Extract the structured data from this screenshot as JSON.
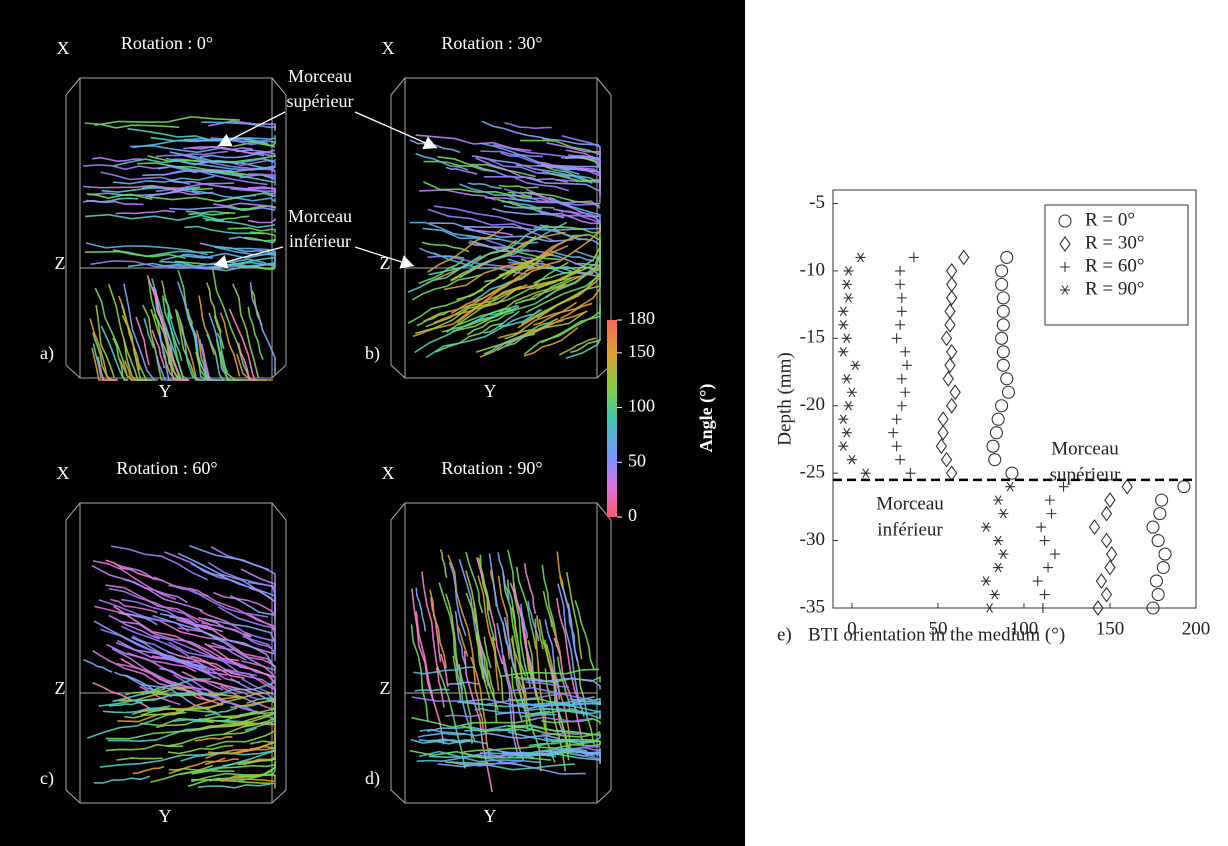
{
  "figure": {
    "panels": [
      {
        "title": "Rotation : 0°",
        "letter": "a)"
      },
      {
        "title": "Rotation : 30°",
        "letter": "b)"
      },
      {
        "title": "Rotation : 60°",
        "letter": "c)"
      },
      {
        "title": "Rotation : 90°",
        "letter": "d)"
      }
    ],
    "axis_labels": {
      "x": "X",
      "y": "Y",
      "z": "Z"
    },
    "annotations": {
      "upper": [
        "Morceau",
        "supérieur"
      ],
      "lower": [
        "Morceau",
        "inférieur"
      ]
    },
    "colorbar": {
      "label": "Angle (°)",
      "lim": [
        0,
        180
      ],
      "ticks": [
        0,
        50,
        100,
        150,
        180
      ]
    }
  },
  "chart_data": {
    "type": "scatter",
    "panel_label": "e)",
    "x_label": "BTI orientation in the medium (°)",
    "y_label": "Depth (mm)",
    "xlim": [
      -11,
      200
    ],
    "xticks": [
      0,
      50,
      100,
      150,
      200
    ],
    "ylim": [
      -35,
      -4
    ],
    "yticks": [
      -35,
      -30,
      -25,
      -20,
      -15,
      -10,
      -5
    ],
    "y": [
      -9,
      -10,
      -11,
      -12,
      -13,
      -14,
      -15,
      -16,
      -17,
      -18,
      -19,
      -20,
      -21,
      -22,
      -23,
      -24,
      -25,
      -26,
      -27,
      -28,
      -29,
      -30,
      -31,
      -32,
      -33,
      -34,
      -35
    ],
    "series": [
      {
        "name": "R = 0°",
        "marker": "circle",
        "color": "#333333",
        "x": [
          90,
          87,
          87,
          88,
          88,
          88,
          87,
          88,
          88,
          90,
          91,
          87,
          85,
          84,
          82,
          83,
          93,
          193,
          180,
          179,
          175,
          178,
          182,
          181,
          177,
          178,
          175
        ]
      },
      {
        "name": "R = 30°",
        "marker": "diamond",
        "color": "#333333",
        "x": [
          65,
          58,
          58,
          58,
          57,
          57,
          55,
          58,
          57,
          56,
          60,
          58,
          53,
          53,
          52,
          55,
          58,
          160,
          150,
          148,
          141,
          148,
          151,
          150,
          145,
          148,
          143
        ]
      },
      {
        "name": "R = 60°",
        "marker": "plus",
        "color": "#333333",
        "x": [
          36,
          28,
          28,
          29,
          29,
          28,
          26,
          31,
          32,
          29,
          31,
          29,
          26,
          24,
          26,
          28,
          34,
          123,
          115,
          116,
          110,
          112,
          118,
          114,
          108,
          112,
          111
        ]
      },
      {
        "name": "R = 90°",
        "marker": "star",
        "color": "#333333",
        "x": [
          5,
          -2,
          -3,
          -2,
          -5,
          -5,
          -3,
          -5,
          2,
          -3,
          0,
          -2,
          -5,
          -3,
          -5,
          0,
          8,
          92,
          85,
          88,
          78,
          85,
          88,
          85,
          78,
          83,
          80
        ]
      }
    ],
    "hline": -25.5,
    "annotations": [
      {
        "lines": [
          "Morceau",
          "supérieur"
        ]
      },
      {
        "lines": [
          "Morceau",
          "inférieur"
        ]
      }
    ],
    "legend": "upper right"
  }
}
